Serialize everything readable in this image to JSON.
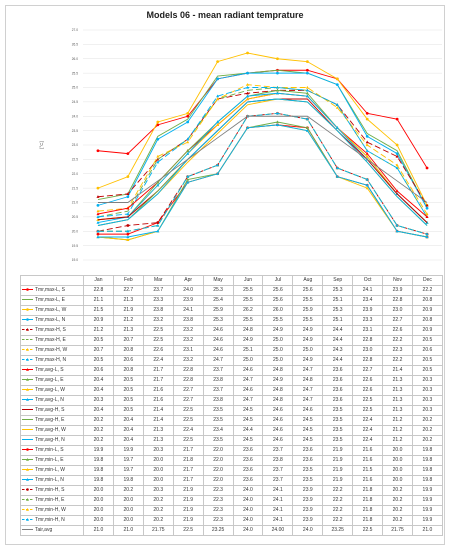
{
  "chart_data": {
    "type": "line",
    "title": "Models 06 - mean radiant temprature",
    "ylabel": "[°C]",
    "ylim": [
      19,
      27
    ],
    "yticks": [
      "27.0",
      "26.5",
      "26.0",
      "25.5",
      "25.0",
      "24.5",
      "24.0",
      "23.5",
      "23.0",
      "22.5",
      "22.0",
      "21.5",
      "21.0",
      "20.5",
      "20.0",
      "19.5",
      "19.0"
    ],
    "categories": [
      "Jan",
      "Feb",
      "Mar",
      "Apr",
      "May",
      "Jun",
      "Jul",
      "Aug",
      "Sep",
      "Oct",
      "Nov",
      "Dec"
    ],
    "series": [
      {
        "name": "Tmr,max-L, S",
        "color": "#ff0000",
        "dash": "",
        "marker": "circle",
        "values": [
          "22.8",
          "22.7",
          "23.7",
          "24.0",
          "25.3",
          "25.5",
          "25.6",
          "25.6",
          "25.3",
          "24.1",
          "23.9",
          "22.2"
        ]
      },
      {
        "name": "Tmr,max-L, E",
        "color": "#70ad47",
        "dash": "",
        "marker": "none",
        "values": [
          "21.1",
          "21.3",
          "23.3",
          "23.9",
          "25.4",
          "25.5",
          "25.6",
          "25.5",
          "25.1",
          "23.4",
          "22.8",
          "20.8"
        ]
      },
      {
        "name": "Tmr,max-L, W",
        "color": "#ffc000",
        "dash": "",
        "marker": "circle",
        "values": [
          "21.5",
          "21.9",
          "23.8",
          "24.1",
          "25.9",
          "26.2",
          "26.0",
          "25.9",
          "25.3",
          "23.9",
          "23.0",
          "20.9"
        ]
      },
      {
        "name": "Tmr,max-L, N",
        "color": "#00b0f0",
        "dash": "",
        "marker": "circle",
        "values": [
          "20.9",
          "21.2",
          "23.2",
          "23.8",
          "25.3",
          "25.5",
          "25.5",
          "25.5",
          "25.1",
          "23.3",
          "22.7",
          "20.8"
        ]
      },
      {
        "name": "Tmr,max-H, S",
        "color": "#c00000",
        "dash": "6,3",
        "marker": "triangle",
        "values": [
          "21.2",
          "21.3",
          "22.5",
          "23.2",
          "24.6",
          "24.8",
          "24.9",
          "24.9",
          "24.4",
          "23.1",
          "22.6",
          "20.9"
        ]
      },
      {
        "name": "Tmr,max-H, E",
        "color": "#70ad47",
        "dash": "6,3",
        "marker": "none",
        "values": [
          "20.5",
          "20.7",
          "22.5",
          "23.2",
          "24.6",
          "24.9",
          "25.0",
          "24.9",
          "24.4",
          "22.8",
          "22.2",
          "20.5"
        ]
      },
      {
        "name": "Tmr,max-H, W",
        "color": "#ffc000",
        "dash": "6,3",
        "marker": "triangle",
        "values": [
          "20.7",
          "20.8",
          "22.6",
          "23.1",
          "24.6",
          "25.1",
          "25.0",
          "25.0",
          "24.3",
          "23.0",
          "22.3",
          "20.6"
        ]
      },
      {
        "name": "Tmr,max-H, N",
        "color": "#00b0f0",
        "dash": "6,3",
        "marker": "triangle",
        "values": [
          "20.5",
          "20.6",
          "22.4",
          "23.2",
          "24.7",
          "25.0",
          "25.0",
          "24.9",
          "24.4",
          "22.8",
          "22.2",
          "20.5"
        ]
      },
      {
        "name": "Tmr,avg-L, S",
        "color": "#ff0000",
        "dash": "",
        "marker": "triangle",
        "values": [
          "20.6",
          "20.8",
          "21.7",
          "22.8",
          "23.7",
          "24.6",
          "24.8",
          "24.7",
          "23.6",
          "22.7",
          "21.4",
          "20.5"
        ]
      },
      {
        "name": "Tmr,avg-L, E",
        "color": "#70ad47",
        "dash": "",
        "marker": "triangle",
        "values": [
          "20.4",
          "20.5",
          "21.7",
          "22.8",
          "23.8",
          "24.7",
          "24.9",
          "24.8",
          "23.6",
          "22.6",
          "21.3",
          "20.3"
        ]
      },
      {
        "name": "Tmr,avg-L, W",
        "color": "#ffc000",
        "dash": "",
        "marker": "triangle",
        "values": [
          "20.4",
          "20.5",
          "21.6",
          "22.7",
          "23.7",
          "24.6",
          "24.8",
          "24.7",
          "23.6",
          "22.6",
          "21.3",
          "20.3"
        ]
      },
      {
        "name": "Tmr,avg-L, N",
        "color": "#00b0f0",
        "dash": "",
        "marker": "triangle",
        "values": [
          "20.3",
          "20.5",
          "21.6",
          "22.7",
          "23.8",
          "24.7",
          "24.8",
          "24.7",
          "23.6",
          "22.5",
          "21.3",
          "20.3"
        ]
      },
      {
        "name": "Tmr,avg-H, S",
        "color": "#c00000",
        "dash": "",
        "marker": "none",
        "values": [
          "20.4",
          "20.5",
          "21.4",
          "22.5",
          "23.5",
          "24.5",
          "24.6",
          "24.6",
          "23.5",
          "22.5",
          "21.3",
          "20.3"
        ]
      },
      {
        "name": "Tmr,avg-H, E",
        "color": "#70ad47",
        "dash": "",
        "marker": "none",
        "values": [
          "20.2",
          "20.4",
          "21.4",
          "22.5",
          "23.5",
          "24.5",
          "24.6",
          "24.5",
          "23.5",
          "22.4",
          "21.2",
          "20.2"
        ]
      },
      {
        "name": "Tmr,avg-H, W",
        "color": "#ffc000",
        "dash": "",
        "marker": "none",
        "values": [
          "20.2",
          "20.4",
          "21.3",
          "22.4",
          "23.4",
          "24.4",
          "24.6",
          "24.5",
          "23.5",
          "22.4",
          "21.2",
          "20.2"
        ]
      },
      {
        "name": "Tmr,avg-H, N",
        "color": "#00b0f0",
        "dash": "",
        "marker": "none",
        "values": [
          "20.2",
          "20.4",
          "21.3",
          "22.5",
          "23.5",
          "24.5",
          "24.6",
          "24.5",
          "23.5",
          "22.4",
          "21.2",
          "20.2"
        ]
      },
      {
        "name": "Tmr,min-L, S",
        "color": "#ff0000",
        "dash": "",
        "marker": "circle",
        "values": [
          "19.9",
          "19.9",
          "20.3",
          "21.7",
          "22.0",
          "23.6",
          "23.7",
          "23.6",
          "21.9",
          "21.6",
          "20.0",
          "19.8"
        ]
      },
      {
        "name": "Tmr,min-L, E",
        "color": "#70ad47",
        "dash": "",
        "marker": "triangle",
        "values": [
          "19.8",
          "19.7",
          "20.0",
          "21.8",
          "22.0",
          "23.6",
          "23.8",
          "23.6",
          "21.9",
          "21.6",
          "20.0",
          "19.8"
        ]
      },
      {
        "name": "Tmr,min-L, W",
        "color": "#ffc000",
        "dash": "",
        "marker": "triangle",
        "values": [
          "19.8",
          "19.7",
          "20.0",
          "21.7",
          "22.0",
          "23.6",
          "23.7",
          "23.5",
          "21.9",
          "21.5",
          "20.0",
          "19.8"
        ]
      },
      {
        "name": "Tmr,min-L, N",
        "color": "#00b0f0",
        "dash": "",
        "marker": "triangle",
        "values": [
          "19.8",
          "19.8",
          "20.0",
          "21.7",
          "22.0",
          "23.6",
          "23.7",
          "23.5",
          "21.9",
          "21.6",
          "20.0",
          "19.8"
        ]
      },
      {
        "name": "Tmr,min-H, S",
        "color": "#c00000",
        "dash": "6,3",
        "marker": "circle",
        "values": [
          "20.0",
          "20.2",
          "20.3",
          "21.9",
          "22.3",
          "24.0",
          "24.1",
          "23.9",
          "22.2",
          "21.8",
          "20.2",
          "19.9"
        ]
      },
      {
        "name": "Tmr,min-H, E",
        "color": "#70ad47",
        "dash": "6,3",
        "marker": "triangle",
        "values": [
          "20.0",
          "20.0",
          "20.2",
          "21.9",
          "22.3",
          "24.0",
          "24.1",
          "23.9",
          "22.2",
          "21.8",
          "20.2",
          "19.9"
        ]
      },
      {
        "name": "Tmr,min-H, W",
        "color": "#ffc000",
        "dash": "6,3",
        "marker": "triangle",
        "values": [
          "20.0",
          "20.0",
          "20.2",
          "21.9",
          "22.3",
          "24.0",
          "24.1",
          "23.9",
          "22.2",
          "21.8",
          "20.2",
          "19.9"
        ]
      },
      {
        "name": "Tmr,min-H, N",
        "color": "#00b0f0",
        "dash": "6,3",
        "marker": "triangle",
        "values": [
          "20.0",
          "20.0",
          "20.2",
          "21.9",
          "22.3",
          "24.0",
          "24.1",
          "23.9",
          "22.2",
          "21.8",
          "20.2",
          "19.9"
        ]
      },
      {
        "name": "Tair,avg",
        "color": "#7f7f7f",
        "dash": "",
        "marker": "none",
        "values": [
          "21.0",
          "21.0",
          "21.75",
          "22.5",
          "23.25",
          "24.0",
          "24.00",
          "24.0",
          "23.25",
          "22.5",
          "21.75",
          "21.0"
        ]
      }
    ]
  }
}
